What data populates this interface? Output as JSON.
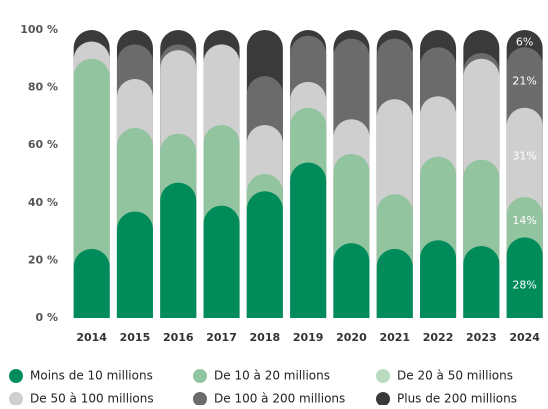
{
  "chart_data": {
    "type": "stacked-bar",
    "categories": [
      "2014",
      "2015",
      "2016",
      "2017",
      "2018",
      "2019",
      "2020",
      "2021",
      "2022",
      "2023",
      "2024"
    ],
    "ylim": [
      0,
      100
    ],
    "yticks": [
      {
        "value": 0,
        "label": "0 %"
      },
      {
        "value": 20,
        "label": "20 %"
      },
      {
        "value": 40,
        "label": "40 %"
      },
      {
        "value": 60,
        "label": "60 %"
      },
      {
        "value": 80,
        "label": "80 %"
      },
      {
        "value": 100,
        "label": "100 %"
      }
    ],
    "series": [
      {
        "name": "Moins de 10 millions",
        "color": "#008c5a",
        "values": [
          24,
          37,
          47,
          39,
          44,
          54,
          26,
          24,
          27,
          25,
          28
        ],
        "value_labels": [
          null,
          null,
          null,
          null,
          null,
          null,
          null,
          null,
          null,
          null,
          "28%"
        ]
      },
      {
        "name": "De 10 à 20 millions",
        "color": "#93c4a0",
        "values": [
          66,
          29,
          17,
          28,
          6,
          19,
          31,
          19,
          29,
          30,
          14
        ],
        "value_labels": [
          null,
          null,
          null,
          null,
          null,
          null,
          null,
          null,
          null,
          null,
          "14%"
        ]
      },
      {
        "name": "De 20 à 50 millions",
        "color": "#b9dcc1",
        "values": [
          0,
          0,
          0,
          0,
          0,
          0,
          0,
          0,
          0,
          0,
          0
        ]
      },
      {
        "name": "De 50 à 100 millions",
        "color": "#cfcfcf",
        "values": [
          6,
          17,
          29,
          28,
          17,
          9,
          12,
          33,
          21,
          35,
          31
        ],
        "value_labels": [
          null,
          null,
          null,
          null,
          null,
          null,
          null,
          null,
          null,
          null,
          "31%"
        ]
      },
      {
        "name": "De 100 à 200 millions",
        "color": "#6b6b6b",
        "values": [
          0,
          12,
          2,
          0,
          17,
          16,
          28,
          21,
          17,
          2,
          21
        ],
        "value_labels": [
          null,
          null,
          null,
          null,
          null,
          null,
          null,
          null,
          null,
          null,
          "21%"
        ]
      },
      {
        "name": "Plus de 200 millions",
        "color": "#3a3a3a",
        "values": [
          4,
          5,
          5,
          5,
          16,
          2,
          3,
          3,
          6,
          8,
          6
        ],
        "value_labels": [
          null,
          null,
          null,
          null,
          null,
          null,
          null,
          null,
          null,
          null,
          "6%"
        ]
      }
    ]
  }
}
